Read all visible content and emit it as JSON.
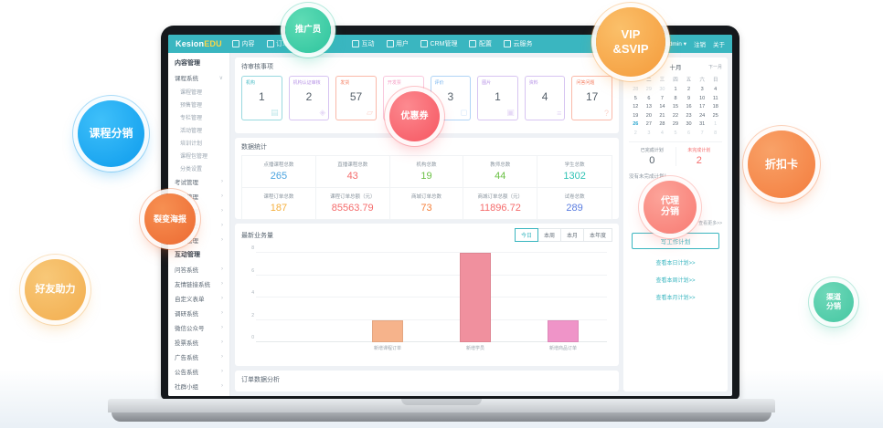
{
  "navbar": {
    "logo_primary": "Kesion",
    "logo_accent": "EDU",
    "items": [
      {
        "label": "内容",
        "icon": "content-icon",
        "active": true
      },
      {
        "label": "订单",
        "icon": "order-icon"
      },
      {
        "label": "互动",
        "icon": "interaction-icon"
      },
      {
        "label": "用户",
        "icon": "user-icon"
      },
      {
        "label": "CRM管理",
        "icon": "crm-icon"
      },
      {
        "label": "配置",
        "icon": "gear-icon"
      },
      {
        "label": "云服务",
        "icon": "cloud-icon"
      }
    ],
    "refresh_icon": "↻",
    "username": "admin",
    "caret": "▾",
    "links": [
      "注销",
      "关于"
    ]
  },
  "sidebar": {
    "sections": [
      {
        "title": "内容管理",
        "items": [
          {
            "label": "课程系统",
            "arrow": "∨",
            "children": [
              "课程管理",
              "预售管理",
              "专栏管理",
              "活动管理",
              "培训计划",
              "课程包管理",
              "分类设置"
            ]
          },
          {
            "label": "考试管理",
            "arrow": "›"
          },
          {
            "label": "资讯管理",
            "arrow": "›"
          },
          {
            "label": "电商管理",
            "arrow": "›"
          },
          {
            "label": "图书管理",
            "arrow": "›"
          },
          {
            "label": "素材管理",
            "arrow": "›"
          }
        ]
      },
      {
        "title": "互动管理",
        "items": [
          {
            "label": "问答系统",
            "arrow": "›"
          },
          {
            "label": "友情链接系统",
            "arrow": "›"
          },
          {
            "label": "自定义表单",
            "arrow": "›"
          },
          {
            "label": "调研系统",
            "arrow": "›"
          },
          {
            "label": "微信公众号",
            "arrow": "›"
          },
          {
            "label": "投票系统",
            "arrow": "›"
          },
          {
            "label": "广告系统",
            "arrow": "›"
          },
          {
            "label": "公告系统",
            "arrow": "›"
          },
          {
            "label": "社群小组",
            "arrow": "›"
          },
          {
            "label": "采集系统",
            "arrow": "›"
          }
        ]
      }
    ]
  },
  "pending": {
    "title": "待审核事项",
    "cards": [
      {
        "label": "机构",
        "value": "1",
        "color": "#45bac4",
        "icon": "building"
      },
      {
        "label": "机构认证审核",
        "value": "2",
        "color": "#b793e6",
        "icon": "box"
      },
      {
        "label": "发货",
        "value": "57",
        "color": "#f57f62",
        "icon": "truck"
      },
      {
        "label": "开发票",
        "value": "",
        "color": "#f49ac1",
        "icon": "invoice"
      },
      {
        "label": "评价",
        "value": "3",
        "color": "#6fb0ee",
        "icon": "comment"
      },
      {
        "label": "图片",
        "value": "1",
        "color": "#b793e6",
        "icon": "image"
      },
      {
        "label": "资料",
        "value": "4",
        "color": "#b793e6",
        "icon": "file"
      },
      {
        "label": "问答问题",
        "value": "17",
        "color": "#f57f62",
        "icon": "question"
      }
    ]
  },
  "stats": {
    "title": "数据统计",
    "cells": [
      {
        "label": "点播课程总数",
        "value": "265",
        "color": "#4aa3df"
      },
      {
        "label": "直播课程总数",
        "value": "43",
        "color": "#f56c6c"
      },
      {
        "label": "机构总数",
        "value": "19",
        "color": "#6ac144"
      },
      {
        "label": "教师总数",
        "value": "44",
        "color": "#6ac144"
      },
      {
        "label": "学生总数",
        "value": "1302",
        "color": "#2fc2b4"
      },
      {
        "label": "课程订单总数",
        "value": "187",
        "color": "#f5b03e"
      },
      {
        "label": "课程订单总额（元）",
        "value": "85563.79",
        "color": "#f56c6c"
      },
      {
        "label": "商城订单总数",
        "value": "73",
        "color": "#f5823e"
      },
      {
        "label": "商城订单总额（元）",
        "value": "11896.72",
        "color": "#f56c6c"
      },
      {
        "label": "试卷总数",
        "value": "289",
        "color": "#5a7de0"
      }
    ]
  },
  "chart_data": {
    "type": "bar",
    "title": "最新业务量",
    "tabs": [
      "今日",
      "本周",
      "本月",
      "本年度"
    ],
    "active_tab": "今日",
    "categories": [
      "",
      "新增课程订单",
      "新增学员",
      "新增商品订单"
    ],
    "values": [
      0,
      2,
      8,
      2
    ],
    "bar_colors": [
      "#f6b38b",
      "#f6b38b",
      "#f0909e",
      "#ef94c8"
    ],
    "ylim": [
      0,
      8
    ],
    "yticks": [
      0,
      2,
      4,
      6,
      8
    ],
    "grid": true,
    "legend": "none"
  },
  "orders_analysis": {
    "title": "订单数据分析"
  },
  "calendar": {
    "prev_label": "上一月",
    "month_label": "十月",
    "next_label": "下一月",
    "weekdays": [
      "一",
      "二",
      "三",
      "四",
      "五",
      "六",
      "日"
    ],
    "days": [
      "28",
      "29",
      "30",
      "1",
      "2",
      "3",
      "4",
      "5",
      "6",
      "7",
      "8",
      "9",
      "10",
      "11",
      "12",
      "13",
      "14",
      "15",
      "16",
      "17",
      "18",
      "19",
      "20",
      "21",
      "22",
      "23",
      "24",
      "25",
      "26",
      "27",
      "28",
      "29",
      "30",
      "31",
      "1",
      "2",
      "3",
      "4",
      "5",
      "6",
      "7",
      "8"
    ],
    "muted_indices": [
      0,
      1,
      2,
      34,
      35,
      36,
      37,
      38,
      39,
      40,
      41
    ],
    "today_index": 28,
    "done_label": "已完成计划",
    "done_value": "0",
    "undone_label": "未完成计划",
    "undone_value": "2",
    "empty_text": "没有未完成计划！",
    "more_link": "查看更多>>",
    "write_button": "写工作计划",
    "links": [
      "查看本日计划>>",
      "查看本周计划>>",
      "查看本月计划>>"
    ]
  },
  "bubbles": [
    {
      "id": "promoter",
      "lines": [
        "推广员"
      ],
      "color1": "#5fdcb5",
      "color2": "#2ec49e"
    },
    {
      "id": "vip-svip",
      "lines": [
        "VIP",
        "&SVIP"
      ],
      "color1": "#fbc06a",
      "color2": "#f49a3a"
    },
    {
      "id": "course-distribution",
      "lines": [
        "课程分销"
      ],
      "color1": "#3fc0fa",
      "color2": "#0d9bec"
    },
    {
      "id": "coupon",
      "lines": [
        "优惠券"
      ],
      "color1": "#fc8a90",
      "color2": "#f65560"
    },
    {
      "id": "discount-card",
      "lines": [
        "折扣卡"
      ],
      "color1": "#f9a268",
      "color2": "#f37c3d"
    },
    {
      "id": "agent-distribution",
      "lines": [
        "代理",
        "分销"
      ],
      "color1": "#fca49a",
      "color2": "#f87a72"
    },
    {
      "id": "fission-poster",
      "lines": [
        "裂变海报"
      ],
      "color1": "#f79052",
      "color2": "#ec6a32"
    },
    {
      "id": "friend-boost",
      "lines": [
        "好友助力"
      ],
      "color1": "#f8c878",
      "color2": "#f2ad4e"
    },
    {
      "id": "channel-distribution",
      "lines": [
        "渠道",
        "分销"
      ],
      "color1": "#6fd8b9",
      "color2": "#45c7a2"
    }
  ]
}
